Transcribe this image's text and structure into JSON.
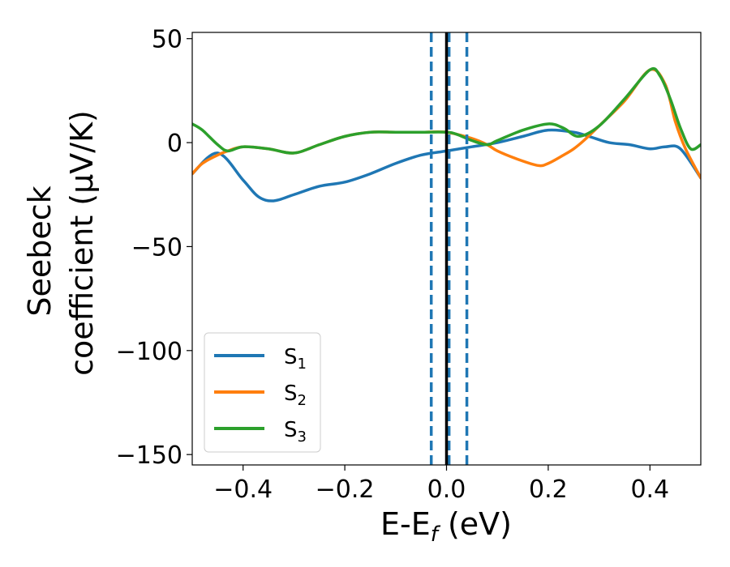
{
  "chart_data": {
    "type": "line",
    "title": "",
    "xlabel": {
      "main": "E-E",
      "sub": "f",
      "unit": " (eV)"
    },
    "ylabel": {
      "line1": "Seebeck",
      "line2": "coefficient  (μV/K)"
    },
    "xlim": [
      -0.5,
      0.5
    ],
    "ylim": [
      -155,
      53
    ],
    "xticks": [
      -0.4,
      -0.2,
      0.0,
      0.2,
      0.4
    ],
    "xtick_labels": [
      "−0.4",
      "−0.2",
      "0.0",
      "0.2",
      "0.4"
    ],
    "yticks": [
      50,
      0,
      -50,
      -100,
      -150
    ],
    "ytick_labels": [
      "50",
      "0",
      "−50",
      "−100",
      "−150"
    ],
    "grid": false,
    "legend_position": "lower-left",
    "series": [
      {
        "name": "S",
        "sub": "1",
        "color": "#1f77b4",
        "x": [
          -0.5,
          -0.45,
          -0.4,
          -0.37,
          -0.34,
          -0.3,
          -0.25,
          -0.2,
          -0.15,
          -0.1,
          -0.05,
          0.0,
          0.05,
          0.1,
          0.15,
          0.2,
          0.25,
          0.28,
          0.32,
          0.36,
          0.4,
          0.43,
          0.46,
          0.5
        ],
        "y": [
          -15,
          -5,
          -18,
          -26,
          -28,
          -25,
          -21,
          -19,
          -15,
          -10,
          -6,
          -4,
          -2,
          0,
          3,
          6,
          5,
          3,
          0,
          -1,
          -3,
          -2,
          -3,
          -17
        ]
      },
      {
        "name": "S",
        "sub": "2",
        "color": "#ff7f0e",
        "x": [
          -0.5,
          -0.48,
          -0.45,
          -0.43,
          -0.4,
          -0.35,
          -0.3,
          -0.25,
          -0.2,
          -0.15,
          -0.1,
          -0.05,
          0.0,
          0.05,
          0.08,
          0.1,
          0.14,
          0.18,
          0.2,
          0.23,
          0.25,
          0.27,
          0.3,
          0.35,
          0.4,
          0.43,
          0.45,
          0.47,
          0.5
        ],
        "y": [
          -15,
          -10,
          -6,
          -4,
          -2,
          -3,
          -5,
          -1,
          3,
          5,
          5,
          5,
          5,
          2,
          -1,
          -4,
          -8,
          -11,
          -10,
          -6,
          -3,
          1,
          8,
          20,
          35,
          28,
          10,
          -3,
          -17
        ]
      },
      {
        "name": "S",
        "sub": "3",
        "color": "#2ca02c",
        "x": [
          -0.5,
          -0.48,
          -0.45,
          -0.43,
          -0.4,
          -0.35,
          -0.3,
          -0.25,
          -0.2,
          -0.15,
          -0.1,
          -0.05,
          0.0,
          0.02,
          0.05,
          0.08,
          0.1,
          0.15,
          0.2,
          0.23,
          0.26,
          0.3,
          0.35,
          0.4,
          0.42,
          0.44,
          0.46,
          0.48,
          0.5
        ],
        "y": [
          9,
          6,
          -1,
          -4,
          -2,
          -3,
          -5,
          -1,
          3,
          5,
          5,
          5,
          5,
          4,
          1,
          -1,
          1,
          6,
          9,
          7,
          3,
          8,
          21,
          35,
          32,
          21,
          7,
          -3,
          -1
        ]
      }
    ],
    "vlines": [
      {
        "x": -0.03,
        "style": "dashed",
        "color": "#1f77b4"
      },
      {
        "x": 0.005,
        "style": "dashed",
        "color": "#1f77b4"
      },
      {
        "x": 0.04,
        "style": "dashed",
        "color": "#1f77b4"
      },
      {
        "x": 0.0,
        "style": "solid",
        "color": "#000000"
      }
    ]
  }
}
